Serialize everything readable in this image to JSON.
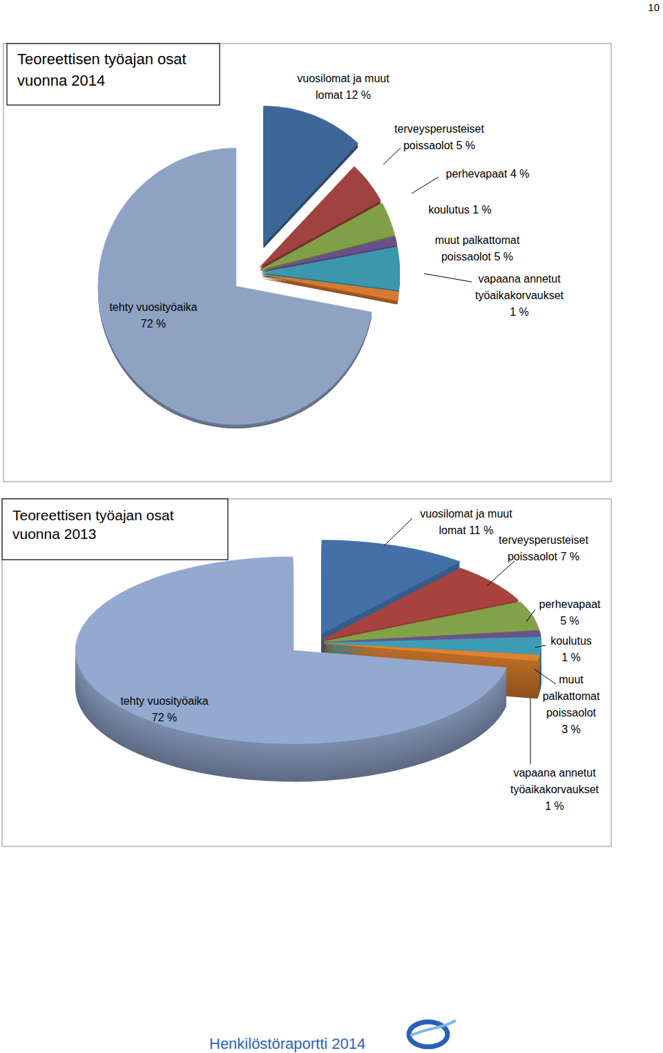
{
  "chart_data": [
    {
      "type": "pie",
      "title": "Teoreettisen työajan osat vuonna 2014",
      "categories": [
        "vuosilomat ja muut lomat",
        "terveysperusteiset poissaolot",
        "perhevapaat",
        "koulutus",
        "muut palkattomat poissaolot",
        "vapaana annetut työaikakorvaukset",
        "tehty vuosityöaika"
      ],
      "values": [
        12,
        5,
        4,
        1,
        5,
        1,
        72
      ],
      "value_labels": [
        "12 %",
        "5 %",
        "4 %",
        "1 %",
        "5 %",
        "1 %",
        "72 %"
      ],
      "colors": [
        "#3f6698",
        "#a04240",
        "#7fa046",
        "#6a4f8a",
        "#3b97ad",
        "#d87a30",
        "#8ea3c4"
      ],
      "data_labels": true
    },
    {
      "type": "pie",
      "title": "Teoreettisen työajan osat vuonna 2013",
      "categories": [
        "vuosilomat ja muut lomat",
        "terveysperusteiset poissaolot",
        "perhevapaat",
        "koulutus",
        "muut palkattomat poissaolot",
        "vapaana annetut työaikakorvaukset",
        "tehty vuosityöaika"
      ],
      "values": [
        11,
        7,
        5,
        1,
        3,
        1,
        72
      ],
      "value_labels": [
        "11 %",
        "7 %",
        "5 %",
        "1 %",
        "3 %",
        "1 %",
        "72 %"
      ],
      "colors": [
        "#4470a8",
        "#a8423f",
        "#82a24a",
        "#6b528c",
        "#3e9bb4",
        "#e0812f",
        "#94a9d0"
      ],
      "data_labels": true
    }
  ],
  "page_number": "10",
  "footer": "Henkilöstöraportti 2014"
}
